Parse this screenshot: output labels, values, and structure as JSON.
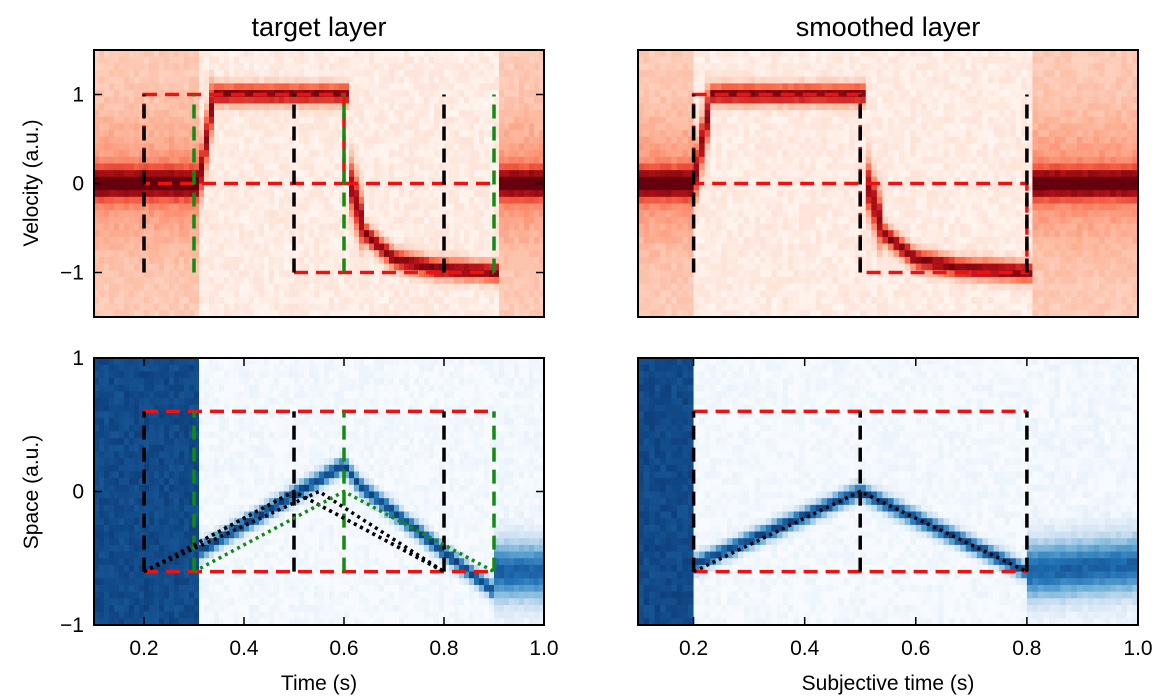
{
  "colors": {
    "velocity_colormap": [
      "#fff5f0",
      "#fcbba1",
      "#fb6a4a",
      "#cb181d",
      "#67000d"
    ],
    "space_colormap": [
      "#f7fbff",
      "#c6dbef",
      "#6baed6",
      "#2171b5",
      "#08306b"
    ],
    "red_dash": "#ee1111",
    "black_dash": "#000000",
    "green_dash": "#138a13"
  },
  "chart_data": [
    {
      "id": "target-velocity",
      "type": "heatmap",
      "title": "target layer",
      "xlabel": "",
      "ylabel": "Velocity (a.u.)",
      "xlim": [
        0.1,
        1.0
      ],
      "ylim": [
        -1.5,
        1.5
      ],
      "x_ticks": [],
      "y_ticks": [
        {
          "v": 1,
          "label": "1"
        },
        {
          "v": 0,
          "label": "0"
        },
        {
          "v": -1,
          "label": "−1"
        }
      ],
      "colormap": "Reds",
      "grid": false,
      "background": [
        {
          "x0": 0.1,
          "x1": 0.31,
          "mode": "wide",
          "center": [
            [
              0.1,
              0
            ],
            [
              0.31,
              0
            ]
          ]
        },
        {
          "x0": 0.31,
          "x1": 0.34,
          "mode": "trans",
          "center": [
            [
              0.31,
              0
            ],
            [
              0.34,
              1
            ]
          ]
        },
        {
          "x0": 0.34,
          "x1": 0.61,
          "mode": "narrow",
          "center": [
            [
              0.34,
              1
            ],
            [
              0.61,
              1
            ]
          ]
        },
        {
          "x0": 0.61,
          "x1": 0.64,
          "mode": "trans",
          "center": [
            [
              0.61,
              0.05
            ],
            [
              0.64,
              -0.5
            ]
          ]
        },
        {
          "x0": 0.64,
          "x1": 0.91,
          "mode": "narrow",
          "center": [
            [
              0.64,
              -0.55
            ],
            [
              0.7,
              -0.85
            ],
            [
              0.78,
              -0.95
            ],
            [
              0.91,
              -1.0
            ]
          ]
        },
        {
          "x0": 0.91,
          "x1": 1.0,
          "mode": "wide",
          "center": [
            [
              0.91,
              0
            ],
            [
              1.0,
              0
            ]
          ]
        }
      ],
      "overlays": [
        {
          "style": "red-dash",
          "points": [
            [
              0.2,
              0
            ],
            [
              0.2,
              1
            ],
            [
              0.6,
              1
            ],
            [
              0.6,
              0
            ],
            [
              0.2,
              0
            ]
          ]
        },
        {
          "style": "red-dash",
          "points": [
            [
              0.6,
              0
            ],
            [
              0.9,
              0
            ]
          ]
        },
        {
          "style": "red-dash",
          "points": [
            [
              0.5,
              -1
            ],
            [
              0.9,
              -1
            ]
          ]
        },
        {
          "style": "black-dash",
          "points": [
            [
              0.2,
              -1
            ],
            [
              0.2,
              1
            ]
          ]
        },
        {
          "style": "black-dash",
          "points": [
            [
              0.5,
              -1
            ],
            [
              0.5,
              1
            ]
          ]
        },
        {
          "style": "black-dash",
          "points": [
            [
              0.8,
              -1
            ],
            [
              0.8,
              1
            ]
          ]
        },
        {
          "style": "green-dash",
          "points": [
            [
              0.3,
              -1
            ],
            [
              0.3,
              1
            ]
          ]
        },
        {
          "style": "green-dash",
          "points": [
            [
              0.6,
              -1
            ],
            [
              0.6,
              1
            ]
          ]
        },
        {
          "style": "green-dash",
          "points": [
            [
              0.9,
              -1
            ],
            [
              0.9,
              1
            ]
          ]
        }
      ]
    },
    {
      "id": "smoothed-velocity",
      "type": "heatmap",
      "title": "smoothed layer",
      "xlabel": "",
      "ylabel": "",
      "xlim": [
        0.1,
        1.0
      ],
      "ylim": [
        -1.5,
        1.5
      ],
      "x_ticks": [],
      "y_ticks": [],
      "colormap": "Reds",
      "grid": false,
      "background": [
        {
          "x0": 0.1,
          "x1": 0.2,
          "mode": "wide",
          "center": [
            [
              0.1,
              0
            ],
            [
              0.2,
              0
            ]
          ]
        },
        {
          "x0": 0.2,
          "x1": 0.23,
          "mode": "trans",
          "center": [
            [
              0.2,
              0
            ],
            [
              0.23,
              0.9
            ]
          ]
        },
        {
          "x0": 0.23,
          "x1": 0.51,
          "mode": "narrow",
          "center": [
            [
              0.23,
              1
            ],
            [
              0.51,
              1
            ]
          ]
        },
        {
          "x0": 0.51,
          "x1": 0.54,
          "mode": "trans",
          "center": [
            [
              0.51,
              0.05
            ],
            [
              0.54,
              -0.5
            ]
          ]
        },
        {
          "x0": 0.54,
          "x1": 0.81,
          "mode": "narrow",
          "center": [
            [
              0.54,
              -0.55
            ],
            [
              0.6,
              -0.85
            ],
            [
              0.68,
              -0.95
            ],
            [
              0.81,
              -1.0
            ]
          ]
        },
        {
          "x0": 0.81,
          "x1": 1.0,
          "mode": "wide",
          "center": [
            [
              0.81,
              0
            ],
            [
              1.0,
              0
            ]
          ]
        }
      ],
      "overlays": [
        {
          "style": "red-dash",
          "points": [
            [
              0.2,
              0
            ],
            [
              0.2,
              1
            ],
            [
              0.5,
              1
            ],
            [
              0.5,
              -1
            ],
            [
              0.8,
              -1
            ],
            [
              0.8,
              0
            ],
            [
              0.2,
              0
            ]
          ]
        },
        {
          "style": "black-dash",
          "points": [
            [
              0.2,
              -1
            ],
            [
              0.2,
              1
            ]
          ]
        },
        {
          "style": "black-dash",
          "points": [
            [
              0.5,
              -1
            ],
            [
              0.5,
              1
            ]
          ]
        },
        {
          "style": "black-dash",
          "points": [
            [
              0.8,
              -1
            ],
            [
              0.8,
              1
            ]
          ]
        }
      ]
    },
    {
      "id": "target-space",
      "type": "heatmap",
      "title": "",
      "xlabel": "Time (s)",
      "ylabel": "Space (a.u.)",
      "xlim": [
        0.1,
        1.0
      ],
      "ylim": [
        -1,
        1
      ],
      "x_ticks": [
        {
          "v": 0.2,
          "label": "0.2"
        },
        {
          "v": 0.4,
          "label": "0.4"
        },
        {
          "v": 0.6,
          "label": "0.6"
        },
        {
          "v": 0.8,
          "label": "0.8"
        },
        {
          "v": 1.0,
          "label": "1.0"
        }
      ],
      "y_ticks": [
        {
          "v": 1,
          "label": "1"
        },
        {
          "v": 0,
          "label": "0"
        },
        {
          "v": -1,
          "label": "−1"
        }
      ],
      "colormap": "Blues",
      "grid": false,
      "background": [
        {
          "x0": 0.1,
          "x1": 0.31,
          "mode": "full"
        },
        {
          "x0": 0.31,
          "x1": 0.9,
          "mode": "band",
          "center": [
            [
              0.31,
              -0.45
            ],
            [
              0.6,
              0.2
            ],
            [
              0.63,
              0.05
            ],
            [
              0.9,
              -0.75
            ]
          ]
        },
        {
          "x0": 0.9,
          "x1": 1.0,
          "mode": "spread",
          "center": [
            [
              0.9,
              -0.6
            ],
            [
              1.0,
              -0.6
            ]
          ]
        }
      ],
      "overlays": [
        {
          "style": "red-dash",
          "points": [
            [
              0.2,
              0.6
            ],
            [
              0.9,
              0.6
            ]
          ]
        },
        {
          "style": "red-dash",
          "points": [
            [
              0.2,
              -0.6
            ],
            [
              0.9,
              -0.6
            ]
          ]
        },
        {
          "style": "black-dash",
          "points": [
            [
              0.2,
              -0.6
            ],
            [
              0.2,
              0.6
            ]
          ]
        },
        {
          "style": "black-dash",
          "points": [
            [
              0.5,
              -0.6
            ],
            [
              0.5,
              0.6
            ]
          ]
        },
        {
          "style": "black-dash",
          "points": [
            [
              0.8,
              -0.6
            ],
            [
              0.8,
              0.6
            ]
          ]
        },
        {
          "style": "green-dash",
          "points": [
            [
              0.3,
              -0.6
            ],
            [
              0.3,
              0.6
            ]
          ]
        },
        {
          "style": "green-dash",
          "points": [
            [
              0.6,
              -0.6
            ],
            [
              0.6,
              0.6
            ]
          ]
        },
        {
          "style": "green-dash",
          "points": [
            [
              0.9,
              -0.6
            ],
            [
              0.9,
              0.6
            ]
          ]
        },
        {
          "style": "black-dot",
          "points": [
            [
              0.2,
              -0.6
            ],
            [
              0.5,
              0
            ],
            [
              0.8,
              -0.6
            ]
          ]
        },
        {
          "style": "black-dot",
          "points": [
            [
              0.2,
              -0.6
            ],
            [
              0.5,
              0
            ],
            [
              0.8,
              -0.6
            ]
          ]
        },
        {
          "style": "black-dot",
          "points": [
            [
              0.2,
              -0.6
            ],
            [
              0.55,
              0
            ],
            [
              0.8,
              -0.6
            ]
          ]
        },
        {
          "style": "green-dot",
          "points": [
            [
              0.3,
              -0.6
            ],
            [
              0.6,
              0
            ],
            [
              0.9,
              -0.6
            ]
          ]
        }
      ]
    },
    {
      "id": "smoothed-space",
      "type": "heatmap",
      "title": "",
      "xlabel": "Subjective time (s)",
      "ylabel": "",
      "xlim": [
        0.1,
        1.0
      ],
      "ylim": [
        -1,
        1
      ],
      "x_ticks": [
        {
          "v": 0.2,
          "label": "0.2"
        },
        {
          "v": 0.4,
          "label": "0.4"
        },
        {
          "v": 0.6,
          "label": "0.6"
        },
        {
          "v": 0.8,
          "label": "0.8"
        },
        {
          "v": 1.0,
          "label": "1.0"
        }
      ],
      "y_ticks": [],
      "colormap": "Blues",
      "grid": false,
      "background": [
        {
          "x0": 0.1,
          "x1": 0.2,
          "mode": "full"
        },
        {
          "x0": 0.2,
          "x1": 0.8,
          "mode": "band",
          "center": [
            [
              0.2,
              -0.55
            ],
            [
              0.5,
              0
            ],
            [
              0.8,
              -0.6
            ]
          ]
        },
        {
          "x0": 0.8,
          "x1": 1.0,
          "mode": "spread",
          "center": [
            [
              0.8,
              -0.6
            ],
            [
              1.0,
              -0.55
            ]
          ]
        }
      ],
      "overlays": [
        {
          "style": "red-dash",
          "points": [
            [
              0.2,
              0.6
            ],
            [
              0.8,
              0.6
            ]
          ]
        },
        {
          "style": "red-dash",
          "points": [
            [
              0.2,
              -0.6
            ],
            [
              0.8,
              -0.6
            ]
          ]
        },
        {
          "style": "black-dash",
          "points": [
            [
              0.2,
              -0.6
            ],
            [
              0.2,
              0.6
            ]
          ]
        },
        {
          "style": "black-dash",
          "points": [
            [
              0.5,
              -0.6
            ],
            [
              0.5,
              0.6
            ]
          ]
        },
        {
          "style": "black-dash",
          "points": [
            [
              0.8,
              -0.6
            ],
            [
              0.8,
              0.6
            ]
          ]
        },
        {
          "style": "black-dot",
          "points": [
            [
              0.2,
              -0.6
            ],
            [
              0.5,
              0
            ],
            [
              0.8,
              -0.6
            ]
          ]
        }
      ]
    }
  ]
}
